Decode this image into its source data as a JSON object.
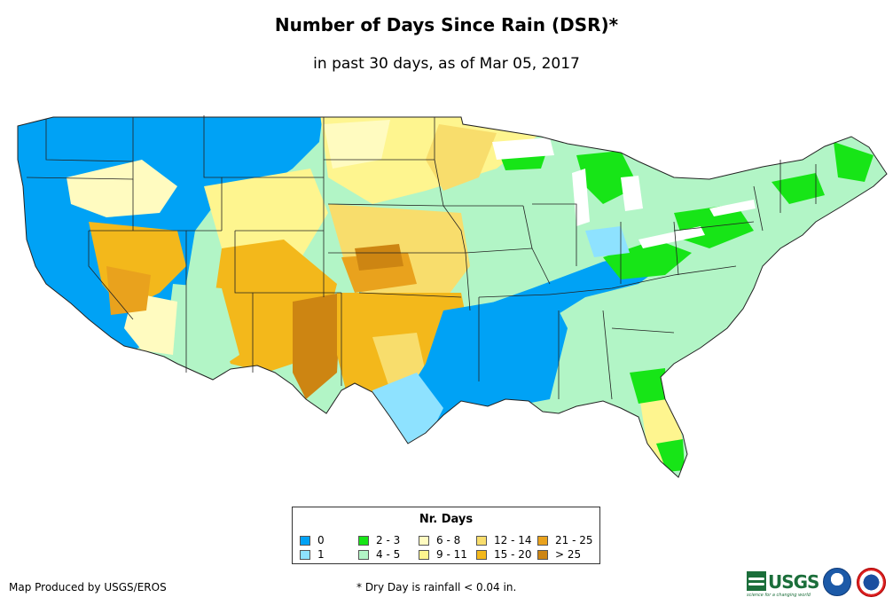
{
  "title": "Number of Days Since Rain (DSR)*",
  "subtitle": "in past 30 days, as of Mar 05, 2017",
  "legend": {
    "title": "Nr. Days",
    "items": [
      {
        "label": "0",
        "color": "#00a2f5"
      },
      {
        "label": "1",
        "color": "#8ee2ff"
      },
      {
        "label": "2 - 3",
        "color": "#17e517"
      },
      {
        "label": "4 - 5",
        "color": "#b2f5c6"
      },
      {
        "label": "6 - 8",
        "color": "#fffbc0"
      },
      {
        "label": "9 - 11",
        "color": "#fef58f"
      },
      {
        "label": "12 - 14",
        "color": "#f8dd6c"
      },
      {
        "label": "15 - 20",
        "color": "#f3b81b"
      },
      {
        "label": "21 - 25",
        "color": "#e9a21d"
      },
      {
        "label": "> 25",
        "color": "#cd8512"
      }
    ]
  },
  "credit": "Map Produced by USGS/EROS",
  "footnote": "* Dry Day is rainfall < 0.04 in.",
  "logos": {
    "usgs_text": "USGS",
    "usgs_tagline": "science for a changing world"
  }
}
